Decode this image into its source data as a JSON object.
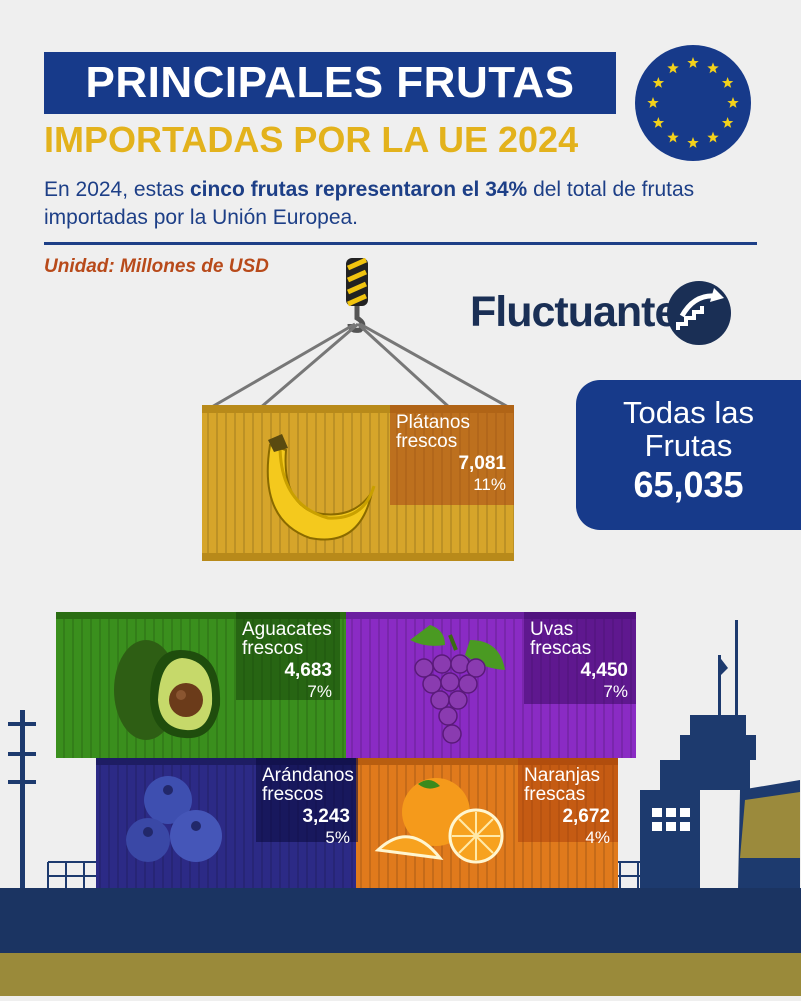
{
  "header": {
    "title": "PRINCIPALES FRUTAS",
    "subtitle": "IMPORTADAS POR LA UE 2024",
    "desc_pre": "En 2024, estas ",
    "desc_bold1": "cinco frutas representaron el ",
    "desc_bold2": "34%",
    "desc_post": " del total de frutas importadas por la Unión Europea.",
    "unit_label": "Unidad:",
    "unit_value": " Millones de USD"
  },
  "brand": {
    "name": "Fluctuante"
  },
  "total": {
    "label_line1": "Todas las",
    "label_line2": "Frutas",
    "value": "65,035"
  },
  "colors": {
    "navy": "#173a8a",
    "gold": "#e3b21c",
    "platanos": "#d6a52a",
    "aguacates": "#3a8f1d",
    "uvas": "#8a2bc4",
    "arandanos": "#2c2a86",
    "naranjas": "#e07a1c"
  },
  "icons": [
    "eu-flag-icon",
    "crane-hook-icon",
    "fluctuante-logo-icon",
    "banana-icon",
    "avocado-icon",
    "grapes-icon",
    "blueberries-icon",
    "oranges-icon"
  ],
  "chart_data": {
    "type": "bar",
    "title": "PRINCIPALES FRUTAS IMPORTADAS POR LA UE 2024",
    "unit": "Millones de USD",
    "total": 65035,
    "series": [
      {
        "key": "platanos",
        "name_line1": "Plátanos",
        "name_line2": "frescos",
        "value": 7081,
        "value_label": "7,081",
        "share": "11%"
      },
      {
        "key": "aguacates",
        "name_line1": "Aguacates",
        "name_line2": "frescos",
        "value": 4683,
        "value_label": "4,683",
        "share": "7%"
      },
      {
        "key": "uvas",
        "name_line1": "Uvas",
        "name_line2": "frescas",
        "value": 4450,
        "value_label": "4,450",
        "share": "7%"
      },
      {
        "key": "arandanos",
        "name_line1": "Arándanos",
        "name_line2": "frescos",
        "value": 3243,
        "value_label": "3,243",
        "share": "5%"
      },
      {
        "key": "naranjas",
        "name_line1": "Naranjas",
        "name_line2": "frescas",
        "value": 2672,
        "value_label": "2,672",
        "share": "4%"
      }
    ]
  }
}
